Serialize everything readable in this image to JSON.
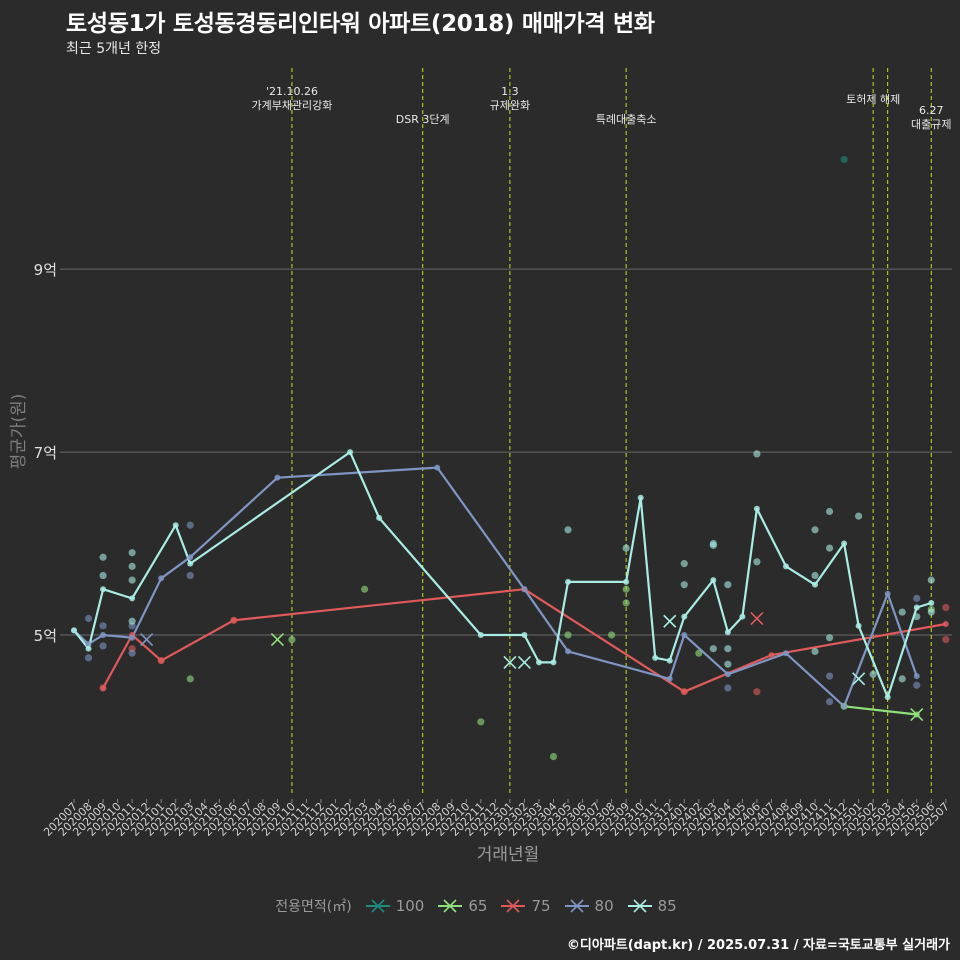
{
  "title": "토성동1가 토성동경동리인타워 아파트(2018) 매매가격 변화",
  "subtitle": "최근 5개년 한정",
  "caption": "©디아파트(dapt.kr) / 2025.07.31 / 자료=국토교통부 실거래가",
  "chart_data": {
    "type": "line",
    "xlabel": "거래년월",
    "ylabel": "평균가(원)",
    "x_categories": [
      "202007",
      "202008",
      "202009",
      "202010",
      "202011",
      "202012",
      "202101",
      "202102",
      "202103",
      "202104",
      "202105",
      "202106",
      "202107",
      "202108",
      "202109",
      "202110",
      "202111",
      "202112",
      "202201",
      "202202",
      "202203",
      "202204",
      "202205",
      "202206",
      "202207",
      "202208",
      "202209",
      "202210",
      "202211",
      "202212",
      "202301",
      "202302",
      "202303",
      "202304",
      "202305",
      "202306",
      "202307",
      "202308",
      "202309",
      "202310",
      "202311",
      "202312",
      "202401",
      "202402",
      "202403",
      "202404",
      "202405",
      "202406",
      "202407",
      "202408",
      "202409",
      "202410",
      "202411",
      "202412",
      "202501",
      "202502",
      "202503",
      "202504",
      "202505",
      "202506",
      "202507"
    ],
    "yticks": [
      {
        "value": 5,
        "label": "5억"
      },
      {
        "value": 7,
        "label": "7억"
      },
      {
        "value": 9,
        "label": "9억"
      }
    ],
    "ylim": [
      3.25,
      11.2
    ],
    "grid": true,
    "legend_position": "bottom",
    "legend_title": "전용면적(㎡)",
    "events": [
      {
        "x": "202110",
        "label": "'21.10.26\n가계부채관리강화"
      },
      {
        "x": "202207",
        "label": "DSR 3단계"
      },
      {
        "x": "202301",
        "label": "1.3\n규제완화"
      },
      {
        "x": "202309",
        "label": "특례대출축소"
      },
      {
        "x": "202502",
        "label": "토허제 해제"
      },
      {
        "x": "202503",
        "label": ""
      },
      {
        "x": "202506",
        "label": "6.27\n대출규제"
      }
    ],
    "series": [
      {
        "name": "100",
        "color": "#1f8a80",
        "line": [],
        "points": [
          {
            "x": "202412",
            "y": 10.2
          }
        ],
        "crosses": []
      },
      {
        "name": "65",
        "color": "#8fe07a",
        "line": [
          {
            "x": "202412",
            "y": 4.22
          },
          {
            "x": "202505",
            "y": 4.13
          }
        ],
        "points": [
          {
            "x": "202110",
            "y": 4.95
          },
          {
            "x": "202203",
            "y": 5.5
          },
          {
            "x": "202103",
            "y": 4.52
          },
          {
            "x": "202211",
            "y": 4.05
          },
          {
            "x": "202304",
            "y": 3.67
          },
          {
            "x": "202305",
            "y": 5.0
          },
          {
            "x": "202308",
            "y": 5.0
          },
          {
            "x": "202309",
            "y": 5.5
          },
          {
            "x": "202309",
            "y": 5.35
          },
          {
            "x": "202402",
            "y": 4.8
          },
          {
            "x": "202412",
            "y": 4.22
          },
          {
            "x": "202506",
            "y": 5.28
          }
        ],
        "crosses": [
          {
            "x": "202109",
            "y": 4.95
          },
          {
            "x": "202505",
            "y": 4.13
          }
        ]
      },
      {
        "name": "75",
        "color": "#e05a5a",
        "line": [
          {
            "x": "202009",
            "y": 4.42
          },
          {
            "x": "202011",
            "y": 5.0
          },
          {
            "x": "202101",
            "y": 4.72
          },
          {
            "x": "202106",
            "y": 5.16
          },
          {
            "x": "202302",
            "y": 5.5
          },
          {
            "x": "202401",
            "y": 4.38
          },
          {
            "x": "202407",
            "y": 4.78
          },
          {
            "x": "202507",
            "y": 5.12
          }
        ],
        "points": [
          {
            "x": "202009",
            "y": 4.42
          },
          {
            "x": "202011",
            "y": 4.85
          },
          {
            "x": "202101",
            "y": 4.72
          },
          {
            "x": "202106",
            "y": 5.16
          },
          {
            "x": "202401",
            "y": 4.38
          },
          {
            "x": "202406",
            "y": 4.38
          },
          {
            "x": "202507",
            "y": 5.3
          },
          {
            "x": "202507",
            "y": 4.95
          }
        ],
        "crosses": [
          {
            "x": "202406",
            "y": 5.18
          }
        ]
      },
      {
        "name": "80",
        "color": "#7f95c4",
        "line": [
          {
            "x": "202007",
            "y": 5.05
          },
          {
            "x": "202008",
            "y": 4.9
          },
          {
            "x": "202009",
            "y": 5.0
          },
          {
            "x": "202011",
            "y": 4.97
          },
          {
            "x": "202101",
            "y": 5.62
          },
          {
            "x": "202103",
            "y": 5.85
          },
          {
            "x": "202109",
            "y": 6.72
          },
          {
            "x": "202208",
            "y": 6.83
          },
          {
            "x": "202302",
            "y": 5.5
          },
          {
            "x": "202305",
            "y": 4.82
          },
          {
            "x": "202312",
            "y": 4.52
          },
          {
            "x": "202401",
            "y": 5.0
          },
          {
            "x": "202404",
            "y": 4.57
          },
          {
            "x": "202408",
            "y": 4.8
          },
          {
            "x": "202412",
            "y": 4.22
          },
          {
            "x": "202503",
            "y": 5.45
          },
          {
            "x": "202505",
            "y": 4.55
          }
        ],
        "points": [
          {
            "x": "202008",
            "y": 5.18
          },
          {
            "x": "202008",
            "y": 4.75
          },
          {
            "x": "202009",
            "y": 5.1
          },
          {
            "x": "202009",
            "y": 4.88
          },
          {
            "x": "202011",
            "y": 4.8
          },
          {
            "x": "202011",
            "y": 5.1
          },
          {
            "x": "202103",
            "y": 6.2
          },
          {
            "x": "202103",
            "y": 5.65
          },
          {
            "x": "202404",
            "y": 4.42
          },
          {
            "x": "202411",
            "y": 4.55
          },
          {
            "x": "202411",
            "y": 4.27
          },
          {
            "x": "202505",
            "y": 4.45
          },
          {
            "x": "202505",
            "y": 5.4
          }
        ],
        "crosses": [
          {
            "x": "202012",
            "y": 4.95
          }
        ]
      },
      {
        "name": "85",
        "color": "#a8ece4",
        "line": [
          {
            "x": "202007",
            "y": 5.05
          },
          {
            "x": "202008",
            "y": 4.85
          },
          {
            "x": "202009",
            "y": 5.5
          },
          {
            "x": "202011",
            "y": 5.4
          },
          {
            "x": "202102",
            "y": 6.2
          },
          {
            "x": "202103",
            "y": 5.78
          },
          {
            "x": "202202",
            "y": 7.0
          },
          {
            "x": "202204",
            "y": 6.28
          },
          {
            "x": "202211",
            "y": 5.0
          },
          {
            "x": "202302",
            "y": 5.0
          },
          {
            "x": "202303",
            "y": 4.7
          },
          {
            "x": "202304",
            "y": 4.7
          },
          {
            "x": "202305",
            "y": 5.58
          },
          {
            "x": "202309",
            "y": 5.58
          },
          {
            "x": "202310",
            "y": 6.5
          },
          {
            "x": "202311",
            "y": 4.75
          },
          {
            "x": "202312",
            "y": 4.72
          },
          {
            "x": "202401",
            "y": 5.2
          },
          {
            "x": "202403",
            "y": 5.6
          },
          {
            "x": "202404",
            "y": 5.03
          },
          {
            "x": "202405",
            "y": 5.2
          },
          {
            "x": "202406",
            "y": 6.38
          },
          {
            "x": "202408",
            "y": 5.75
          },
          {
            "x": "202410",
            "y": 5.55
          },
          {
            "x": "202412",
            "y": 6.0
          },
          {
            "x": "202501",
            "y": 5.1
          },
          {
            "x": "202503",
            "y": 4.32
          },
          {
            "x": "202505",
            "y": 5.3
          },
          {
            "x": "202506",
            "y": 5.35
          }
        ],
        "points": [
          {
            "x": "202009",
            "y": 5.85
          },
          {
            "x": "202009",
            "y": 5.65
          },
          {
            "x": "202011",
            "y": 5.9
          },
          {
            "x": "202011",
            "y": 5.75
          },
          {
            "x": "202011",
            "y": 5.6
          },
          {
            "x": "202011",
            "y": 5.15
          },
          {
            "x": "202305",
            "y": 6.15
          },
          {
            "x": "202309",
            "y": 5.95
          },
          {
            "x": "202401",
            "y": 5.78
          },
          {
            "x": "202401",
            "y": 5.55
          },
          {
            "x": "202403",
            "y": 6.0
          },
          {
            "x": "202403",
            "y": 5.98
          },
          {
            "x": "202403",
            "y": 4.85
          },
          {
            "x": "202404",
            "y": 5.55
          },
          {
            "x": "202404",
            "y": 4.85
          },
          {
            "x": "202404",
            "y": 4.68
          },
          {
            "x": "202406",
            "y": 6.98
          },
          {
            "x": "202406",
            "y": 5.8
          },
          {
            "x": "202410",
            "y": 6.15
          },
          {
            "x": "202410",
            "y": 5.65
          },
          {
            "x": "202410",
            "y": 4.82
          },
          {
            "x": "202411",
            "y": 6.35
          },
          {
            "x": "202411",
            "y": 5.95
          },
          {
            "x": "202411",
            "y": 4.97
          },
          {
            "x": "202501",
            "y": 6.3
          },
          {
            "x": "202502",
            "y": 4.57
          },
          {
            "x": "202504",
            "y": 5.25
          },
          {
            "x": "202504",
            "y": 4.52
          },
          {
            "x": "202505",
            "y": 5.2
          },
          {
            "x": "202506",
            "y": 5.6
          },
          {
            "x": "202506",
            "y": 5.25
          }
        ],
        "crosses": [
          {
            "x": "202301",
            "y": 4.7
          },
          {
            "x": "202302",
            "y": 4.7
          },
          {
            "x": "202312",
            "y": 5.15
          },
          {
            "x": "202501",
            "y": 4.52
          }
        ]
      }
    ]
  }
}
